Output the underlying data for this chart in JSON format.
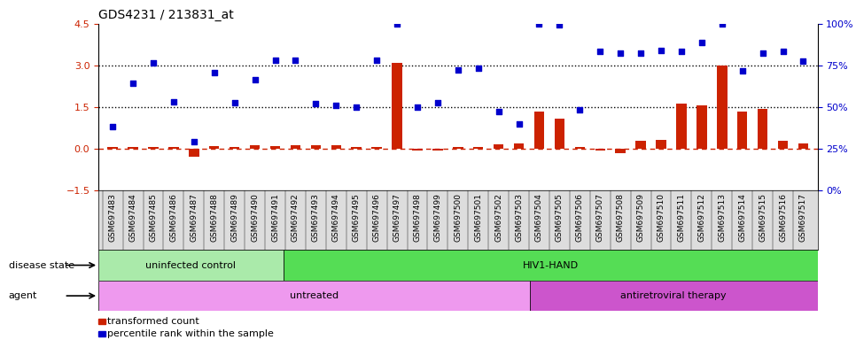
{
  "title": "GDS4231 / 213831_at",
  "samples": [
    "GSM697483",
    "GSM697484",
    "GSM697485",
    "GSM697486",
    "GSM697487",
    "GSM697488",
    "GSM697489",
    "GSM697490",
    "GSM697491",
    "GSM697492",
    "GSM697493",
    "GSM697494",
    "GSM697495",
    "GSM697496",
    "GSM697497",
    "GSM697498",
    "GSM697499",
    "GSM697500",
    "GSM697501",
    "GSM697502",
    "GSM697503",
    "GSM697504",
    "GSM697505",
    "GSM697506",
    "GSM697507",
    "GSM697508",
    "GSM697509",
    "GSM697510",
    "GSM697511",
    "GSM697512",
    "GSM697513",
    "GSM697514",
    "GSM697515",
    "GSM697516",
    "GSM697517"
  ],
  "transformed_count": [
    0.05,
    0.05,
    0.05,
    0.05,
    -0.28,
    0.1,
    0.05,
    0.12,
    0.08,
    0.12,
    0.13,
    0.13,
    0.05,
    0.05,
    3.1,
    -0.05,
    -0.05,
    0.05,
    0.05,
    0.15,
    0.2,
    1.35,
    1.1,
    0.07,
    -0.05,
    -0.15,
    0.28,
    0.32,
    1.62,
    1.55,
    3.0,
    1.35,
    1.45,
    0.28,
    0.2
  ],
  "percentile_rank": [
    0.8,
    2.35,
    3.1,
    1.7,
    0.25,
    2.75,
    1.65,
    2.5,
    3.2,
    3.2,
    1.62,
    1.55,
    1.5,
    3.2,
    4.5,
    1.5,
    1.65,
    2.85,
    2.9,
    1.35,
    0.9,
    4.5,
    4.45,
    1.4,
    3.5,
    3.45,
    3.45,
    3.55,
    3.5,
    3.82,
    4.5,
    2.8,
    3.45,
    3.5,
    3.15
  ],
  "ylim_left": [
    -1.5,
    4.5
  ],
  "yticks_left": [
    -1.5,
    0.0,
    1.5,
    3.0,
    4.5
  ],
  "yticks_right": [
    0,
    25,
    50,
    75,
    100
  ],
  "hlines": [
    1.5,
    3.0
  ],
  "bar_color": "#cc2200",
  "scatter_color": "#0000cc",
  "dashed_line_color": "#cc2200",
  "disease_state_groups": [
    {
      "label": "uninfected control",
      "start": 0,
      "end": 9,
      "color": "#aaeaaa"
    },
    {
      "label": "HIV1-HAND",
      "start": 9,
      "end": 35,
      "color": "#55dd55"
    }
  ],
  "agent_groups": [
    {
      "label": "untreated",
      "start": 0,
      "end": 21,
      "color": "#ee99ee"
    },
    {
      "label": "antiretroviral therapy",
      "start": 21,
      "end": 35,
      "color": "#cc55cc"
    }
  ],
  "background_color": "#ffffff",
  "plot_bg_color": "#ffffff",
  "xtick_bg": "#dddddd",
  "legend": [
    {
      "label": "transformed count",
      "color": "#cc2200"
    },
    {
      "label": "percentile rank within the sample",
      "color": "#0000cc"
    }
  ]
}
